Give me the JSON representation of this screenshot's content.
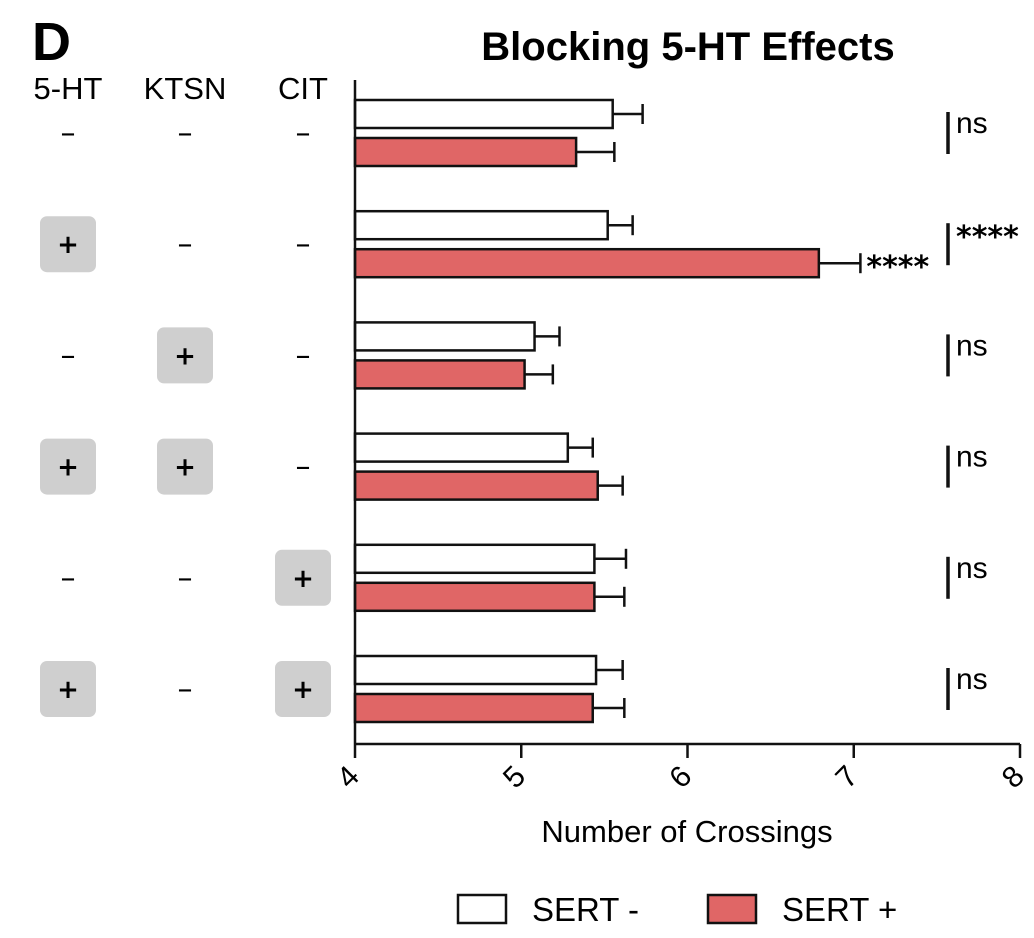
{
  "panel_label": "D",
  "chart_data": {
    "type": "bar",
    "orientation": "horizontal",
    "title": "Blocking 5-HT Effects",
    "xlabel": "Number of Crossings",
    "ylabel": "",
    "xlim": [
      4,
      8
    ],
    "x_ticks": [
      "4",
      "5",
      "6",
      "7",
      "8"
    ],
    "grid": false,
    "legend_position": "bottom",
    "condition_headers": [
      "5-HT",
      "KTSN",
      "CIT"
    ],
    "minus_symbol": "–",
    "plus_symbol": "+",
    "conditions": [
      [
        "-",
        "-",
        "-"
      ],
      [
        "+",
        "-",
        "-"
      ],
      [
        "-",
        "+",
        "-"
      ],
      [
        "+",
        "+",
        "-"
      ],
      [
        "-",
        "-",
        "+"
      ],
      [
        "+",
        "-",
        "+"
      ]
    ],
    "series": [
      {
        "name": "SERT -",
        "color": "#ffffff",
        "values": [
          5.55,
          5.52,
          5.08,
          5.28,
          5.44,
          5.45
        ],
        "errors": [
          0.18,
          0.15,
          0.15,
          0.15,
          0.19,
          0.16
        ]
      },
      {
        "name": "SERT +",
        "color": "#e06666",
        "values": [
          5.33,
          6.79,
          5.02,
          5.46,
          5.44,
          5.43
        ],
        "errors": [
          0.23,
          0.25,
          0.17,
          0.15,
          0.18,
          0.19
        ]
      }
    ],
    "significance": [
      "ns",
      "****",
      "ns",
      "ns",
      "ns",
      "ns"
    ],
    "bar_annotations": [
      {
        "row": 1,
        "series": 1,
        "text": "****"
      }
    ]
  }
}
